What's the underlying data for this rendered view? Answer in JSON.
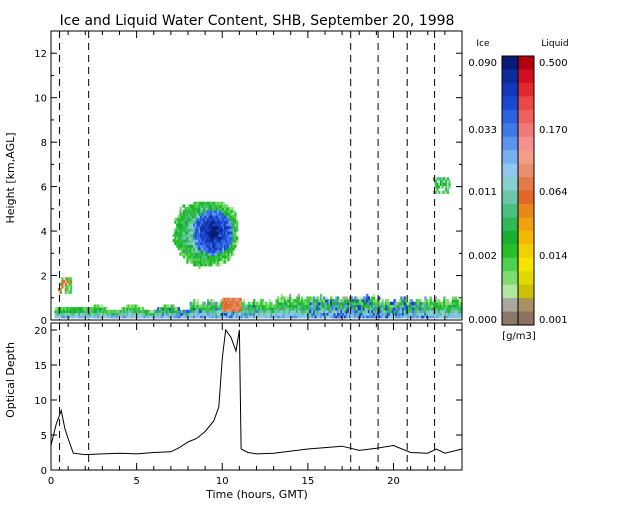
{
  "chart_data": [
    {
      "type": "heatmap",
      "title": "Ice and Liquid Water Content, SHB, September 20, 1998",
      "xlabel": "",
      "ylabel": "Height [km,AGL]",
      "xlim": [
        0,
        24
      ],
      "ylim": [
        0,
        13
      ],
      "xticks": [
        "0",
        "5",
        "10",
        "15",
        "20"
      ],
      "yticks": [
        "0",
        "2",
        "4",
        "6",
        "8",
        "10",
        "12"
      ],
      "dashed_markers_hours": [
        0.5,
        2.2,
        17.5,
        19.1,
        20.8,
        22.4
      ],
      "grid": false,
      "legend": "colorbar right",
      "colorbar": {
        "units": "[g/m3]",
        "ice": {
          "label": "Ice",
          "tick_labels": [
            "0.090",
            "0.033",
            "0.011",
            "0.002",
            "0.000"
          ],
          "colors": [
            "#0a1a78",
            "#0c2c9c",
            "#1038b8",
            "#1a48d0",
            "#2a62e0",
            "#3d7ae8",
            "#5a94ec",
            "#7ab0f0",
            "#92c6ee",
            "#86d0d0",
            "#6ac8a8",
            "#4cc080",
            "#30b858",
            "#18b030",
            "#28c028",
            "#50d050",
            "#80dc70",
            "#b0e8a0",
            "#a8a8a0",
            "#8c7868"
          ]
        },
        "liquid": {
          "label": "Liquid",
          "tick_labels": [
            "0.500",
            "0.170",
            "0.064",
            "0.014",
            "0.001"
          ],
          "colors": [
            "#b00010",
            "#d01020",
            "#e02830",
            "#e84848",
            "#ec6060",
            "#f07878",
            "#f49090",
            "#f0a088",
            "#e89070",
            "#e07a48",
            "#e06828",
            "#e88818",
            "#f0a010",
            "#f0b800",
            "#f0d000",
            "#f4e400",
            "#e0d800",
            "#c8c000",
            "#a89060",
            "#8c7060"
          ]
        }
      },
      "features": [
        {
          "name": "low stratiform cloud",
          "x_range": [
            0,
            24
          ],
          "height_km": [
            0.1,
            1.1
          ],
          "content": "ice 0.002–0.09 g/m3"
        },
        {
          "name": "mid-level cloud",
          "x_range": [
            7,
            10.8
          ],
          "height_km": [
            2.2,
            5.2
          ],
          "content": "ice up to 0.09 g/m3"
        },
        {
          "name": "liquid layer",
          "x_range": [
            10,
            11
          ],
          "height_km": [
            0.4,
            1.0
          ],
          "content": "liquid ~0.064 g/m3"
        },
        {
          "name": "small liquid cloud",
          "x_range": [
            0.4,
            1.2
          ],
          "height_km": [
            1.2,
            2.0
          ],
          "content": "liquid ~0.064 g/m3"
        },
        {
          "name": "upper fragments",
          "x_range": [
            22.3,
            23.3
          ],
          "height_km": [
            5.7,
            6.4
          ],
          "content": "ice ~0.011 g/m3"
        }
      ]
    },
    {
      "type": "line",
      "title": "",
      "xlabel": "Time (hours, GMT)",
      "ylabel": "Optical Depth",
      "xlim": [
        0,
        24
      ],
      "ylim": [
        0,
        21
      ],
      "xticks": [
        "0",
        "5",
        "10",
        "15",
        "20"
      ],
      "yticks": [
        "0",
        "5",
        "10",
        "15",
        "20"
      ],
      "grid": false,
      "series": [
        {
          "name": "",
          "x": [
            0,
            0.3,
            0.6,
            0.8,
            1.0,
            1.3,
            2,
            3,
            4,
            5,
            6,
            7,
            7.5,
            8,
            8.5,
            9,
            9.5,
            9.8,
            10.0,
            10.2,
            10.5,
            10.8,
            11.0,
            11.1,
            11.5,
            12,
            13,
            14,
            15,
            16,
            17,
            18,
            19,
            20,
            21,
            22,
            22.5,
            23,
            24
          ],
          "y": [
            3.5,
            6.5,
            8.5,
            6,
            4.5,
            2.4,
            2.2,
            2.3,
            2.4,
            2.3,
            2.5,
            2.6,
            3.2,
            4,
            4.5,
            5.5,
            7,
            9,
            16,
            20,
            19,
            17,
            20,
            3,
            2.5,
            2.3,
            2.4,
            2.7,
            3,
            3.2,
            3.4,
            2.8,
            3.1,
            3.5,
            2.5,
            2.4,
            3.0,
            2.4,
            3.0
          ]
        }
      ]
    }
  ]
}
